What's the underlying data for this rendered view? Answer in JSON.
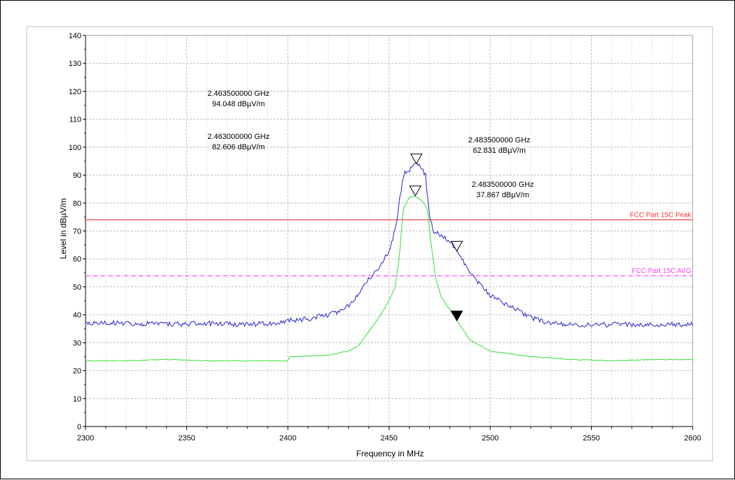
{
  "chart_data": {
    "type": "line",
    "xlabel": "Frequency in MHz",
    "ylabel": "Level in dBµV/m",
    "xlim": [
      2300,
      2600
    ],
    "ylim": [
      0,
      140
    ],
    "x_ticks": [
      "2300",
      "2350",
      "2400",
      "2450",
      "2500",
      "2550",
      "2600"
    ],
    "y_ticks": [
      "0",
      "10",
      "20",
      "30",
      "40",
      "50",
      "60",
      "70",
      "80",
      "90",
      "100",
      "110",
      "120",
      "130",
      "140"
    ],
    "grid": true,
    "limit_lines": [
      {
        "name": "FCC Part 15C Peak",
        "value": 74,
        "color": "#ff3333",
        "style": "solid"
      },
      {
        "name": "FCC Part 15C AVG",
        "value": 54,
        "color": "#ff44ff",
        "style": "dashdot"
      }
    ],
    "series": [
      {
        "color": "#2222cc",
        "x": [
          2300,
          2320,
          2340,
          2360,
          2380,
          2395,
          2400,
          2410,
          2420,
          2425,
          2430,
          2435,
          2440,
          2445,
          2450,
          2452,
          2454,
          2455,
          2457,
          2460,
          2463.5,
          2466,
          2468,
          2469,
          2470,
          2472,
          2475,
          2480,
          2483.5,
          2490,
          2500,
          2510,
          2520,
          2530,
          2540,
          2560,
          2580,
          2600
        ],
        "y": [
          37,
          37,
          36.5,
          37,
          36.5,
          37,
          38,
          38.5,
          40,
          41,
          43,
          48,
          53,
          57,
          63,
          68,
          73,
          80,
          90,
          92,
          94,
          93,
          90,
          82,
          75,
          70,
          69,
          66,
          63,
          55,
          47,
          43,
          39,
          37,
          36.5,
          36.5,
          36.5,
          36.5
        ]
      },
      {
        "color": "#33dd33",
        "x": [
          2300,
          2320,
          2340,
          2360,
          2380,
          2400,
          2401,
          2420,
          2430,
          2435,
          2440,
          2445,
          2450,
          2453,
          2455,
          2457,
          2460,
          2463,
          2466,
          2469,
          2470,
          2473,
          2476,
          2480,
          2483.5,
          2490,
          2500,
          2510,
          2520,
          2540,
          2560,
          2580,
          2600
        ],
        "y": [
          23.5,
          23.5,
          24,
          23.5,
          23.5,
          23.5,
          25,
          25.5,
          27,
          29,
          34,
          39,
          45,
          50,
          60,
          78,
          82,
          82.5,
          81,
          78,
          70,
          53,
          46,
          42,
          38,
          31,
          27,
          26,
          25,
          24,
          23.5,
          24,
          24
        ]
      }
    ],
    "markers": [
      {
        "x": 2463.5,
        "y": 94.048,
        "filled": false,
        "label_freq": "2.463500000 GHz",
        "label_level": "94.048 dBµV/m"
      },
      {
        "x": 2463.0,
        "y": 82.606,
        "filled": false,
        "label_freq": "2.463000000 GHz",
        "label_level": "82.606 dBµV/m"
      },
      {
        "x": 2483.5,
        "y": 62.831,
        "filled": false,
        "label_freq": "2.483500000 GHz",
        "label_level": "62.831 dBµV/m"
      },
      {
        "x": 2483.5,
        "y": 37.867,
        "filled": true,
        "label_freq": "2.483500000 GHz",
        "label_level": "37.867 dBµV/m"
      }
    ]
  }
}
